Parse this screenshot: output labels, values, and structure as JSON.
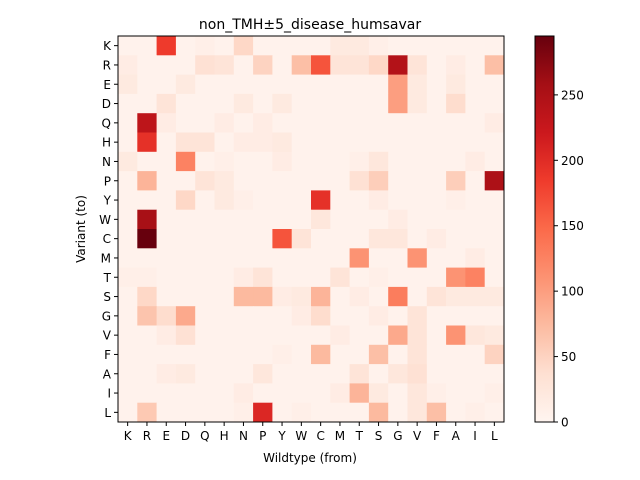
{
  "chart_data": {
    "type": "heatmap",
    "title": "non_TMH±5_disease_humsavar",
    "xlabel": "Wildtype (from)",
    "ylabel": "Variant (to)",
    "x_categories": [
      "K",
      "R",
      "E",
      "D",
      "Q",
      "H",
      "N",
      "P",
      "Y",
      "W",
      "C",
      "M",
      "T",
      "S",
      "G",
      "V",
      "F",
      "A",
      "I",
      "L"
    ],
    "y_categories": [
      "K",
      "R",
      "E",
      "D",
      "Q",
      "H",
      "N",
      "P",
      "Y",
      "W",
      "C",
      "M",
      "T",
      "S",
      "G",
      "V",
      "F",
      "A",
      "I",
      "L"
    ],
    "colormap": "Reds",
    "color_range": [
      0,
      295
    ],
    "colorbar_ticks": [
      0,
      50,
      100,
      150,
      200,
      250
    ],
    "grid": false,
    "values": [
      [
        5,
        5,
        185,
        5,
        10,
        5,
        45,
        5,
        5,
        5,
        5,
        20,
        20,
        10,
        5,
        5,
        5,
        5,
        5,
        5
      ],
      [
        15,
        5,
        5,
        5,
        35,
        30,
        5,
        50,
        5,
        70,
        165,
        30,
        30,
        45,
        245,
        30,
        5,
        15,
        5,
        70
      ],
      [
        20,
        5,
        5,
        20,
        5,
        5,
        5,
        5,
        5,
        5,
        5,
        5,
        5,
        5,
        100,
        20,
        5,
        20,
        5,
        5
      ],
      [
        5,
        5,
        30,
        5,
        5,
        5,
        20,
        5,
        20,
        5,
        5,
        5,
        5,
        5,
        100,
        20,
        5,
        40,
        5,
        5
      ],
      [
        5,
        235,
        15,
        5,
        5,
        15,
        5,
        15,
        5,
        5,
        5,
        5,
        5,
        5,
        5,
        5,
        5,
        5,
        5,
        15
      ],
      [
        5,
        195,
        5,
        30,
        30,
        5,
        15,
        15,
        20,
        5,
        5,
        5,
        5,
        5,
        5,
        5,
        5,
        5,
        5,
        5
      ],
      [
        20,
        5,
        5,
        125,
        5,
        10,
        5,
        5,
        15,
        5,
        5,
        5,
        10,
        25,
        5,
        5,
        5,
        5,
        15,
        5
      ],
      [
        5,
        80,
        5,
        5,
        30,
        20,
        5,
        5,
        5,
        5,
        5,
        5,
        35,
        55,
        5,
        5,
        5,
        55,
        5,
        250
      ],
      [
        5,
        5,
        5,
        45,
        5,
        20,
        10,
        5,
        5,
        5,
        195,
        5,
        5,
        15,
        5,
        5,
        5,
        10,
        5,
        5
      ],
      [
        5,
        255,
        5,
        5,
        5,
        5,
        5,
        5,
        5,
        5,
        25,
        5,
        5,
        5,
        15,
        5,
        5,
        5,
        5,
        5
      ],
      [
        5,
        295,
        5,
        5,
        5,
        5,
        5,
        5,
        165,
        30,
        5,
        5,
        5,
        25,
        25,
        5,
        15,
        5,
        5,
        5
      ],
      [
        5,
        5,
        5,
        5,
        5,
        5,
        5,
        5,
        5,
        5,
        5,
        5,
        110,
        5,
        5,
        110,
        5,
        5,
        15,
        5
      ],
      [
        10,
        10,
        5,
        5,
        5,
        5,
        15,
        30,
        5,
        5,
        5,
        30,
        5,
        10,
        5,
        5,
        5,
        110,
        125,
        5
      ],
      [
        5,
        45,
        5,
        5,
        5,
        5,
        75,
        75,
        15,
        20,
        80,
        5,
        15,
        5,
        130,
        5,
        30,
        20,
        20,
        20
      ],
      [
        5,
        65,
        40,
        90,
        5,
        5,
        5,
        5,
        5,
        15,
        40,
        5,
        5,
        15,
        5,
        30,
        5,
        5,
        5,
        5
      ],
      [
        5,
        5,
        15,
        35,
        5,
        5,
        5,
        5,
        5,
        5,
        5,
        15,
        5,
        5,
        90,
        30,
        5,
        110,
        25,
        20
      ],
      [
        5,
        5,
        5,
        5,
        5,
        5,
        5,
        5,
        10,
        5,
        75,
        5,
        5,
        70,
        5,
        30,
        5,
        5,
        5,
        50
      ],
      [
        5,
        5,
        15,
        20,
        5,
        5,
        5,
        25,
        5,
        5,
        5,
        5,
        30,
        5,
        25,
        35,
        5,
        5,
        5,
        5
      ],
      [
        5,
        5,
        5,
        5,
        5,
        5,
        15,
        5,
        5,
        5,
        5,
        15,
        80,
        20,
        5,
        25,
        10,
        5,
        5,
        10
      ],
      [
        5,
        60,
        5,
        5,
        5,
        5,
        10,
        205,
        5,
        10,
        5,
        5,
        5,
        75,
        5,
        25,
        70,
        5,
        10,
        5
      ]
    ]
  }
}
